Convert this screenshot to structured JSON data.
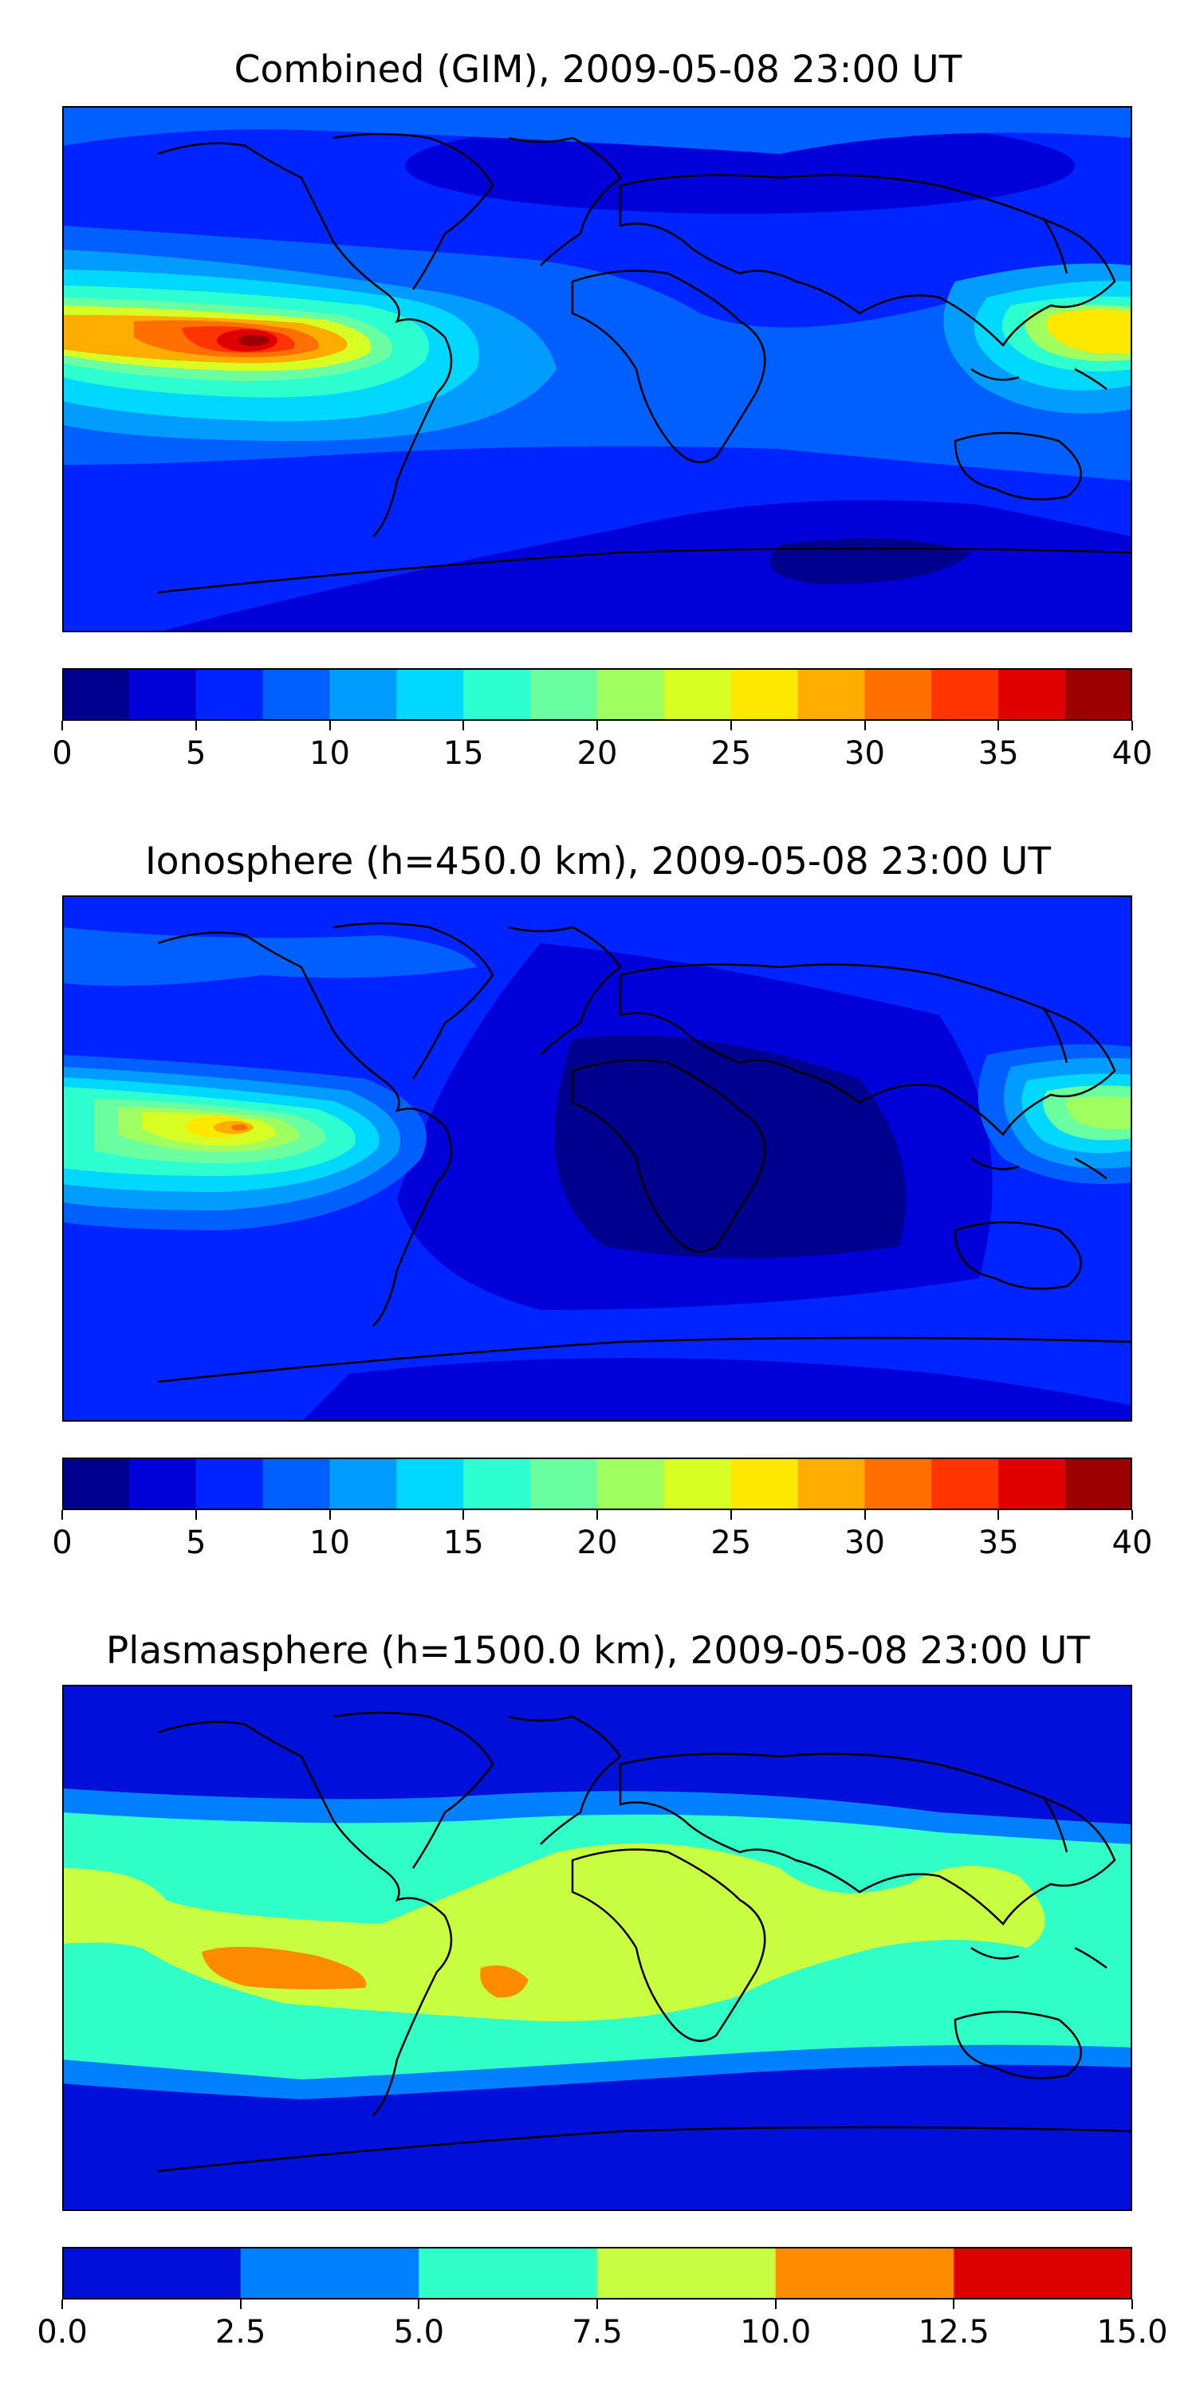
{
  "panels": [
    {
      "title": "Combined (GIM), 2009-05-08 23:00 UT",
      "colorbar_ticks": [
        "0",
        "5",
        "10",
        "15",
        "20",
        "25",
        "30",
        "35",
        "40"
      ],
      "colorbar_colors": [
        "#00008f",
        "#0000d8",
        "#0024ff",
        "#0060ff",
        "#009cff",
        "#00d8ff",
        "#2effd0",
        "#6affa0",
        "#a0ff60",
        "#d8ff24",
        "#ffe800",
        "#ffac00",
        "#ff7000",
        "#ff3400",
        "#e00000",
        "#9c0000"
      ]
    },
    {
      "title": "Ionosphere  (h=450.0 km), 2009-05-08 23:00 UT",
      "colorbar_ticks": [
        "0",
        "5",
        "10",
        "15",
        "20",
        "25",
        "30",
        "35",
        "40"
      ],
      "colorbar_colors": [
        "#00008f",
        "#0000d8",
        "#0024ff",
        "#0060ff",
        "#009cff",
        "#00d8ff",
        "#2effd0",
        "#6affa0",
        "#a0ff60",
        "#d8ff24",
        "#ffe800",
        "#ffac00",
        "#ff7000",
        "#ff3400",
        "#e00000",
        "#9c0000"
      ]
    },
    {
      "title": "Plasmasphere (h=1500.0 km), 2009-05-08 23:00 UT",
      "colorbar_ticks": [
        "0.0",
        "2.5",
        "5.0",
        "7.5",
        "10.0",
        "12.5",
        "15.0"
      ],
      "colorbar_colors": [
        "#0010d8",
        "#0080ff",
        "#30ffc8",
        "#c8ff40",
        "#ff8c00",
        "#dc0000"
      ]
    }
  ],
  "chart_data": [
    {
      "type": "heatmap",
      "title": "Combined (GIM), 2009-05-08 23:00 UT",
      "colorbar_range": [
        0,
        40
      ],
      "colorbar_step": 2.5,
      "features": [
        "peak ~37.5-40 over eastern Pacific west of South America",
        "enhanced ~25-30 over western Pacific near Philippines",
        "minimum ~2.5-5 over Southern Ocean / Antarctica"
      ]
    },
    {
      "type": "heatmap",
      "title": "Ionosphere  (h=450.0 km), 2009-05-08 23:00 UT",
      "colorbar_range": [
        0,
        40
      ],
      "colorbar_step": 2.5,
      "features": [
        "peak ~27.5-30 over eastern Pacific",
        "~20-22.5 over western Pacific",
        "minimum ~0-2.5 over Africa / Atlantic"
      ]
    },
    {
      "type": "heatmap",
      "title": "Plasmasphere (h=1500.0 km), 2009-05-08 23:00 UT",
      "colorbar_range": [
        0.0,
        15.0
      ],
      "colorbar_step": 2.5,
      "features": [
        "equatorial band ~7.5-10",
        "local maxima ~10-12.5 in eastern Pacific and off Brazil",
        "high latitudes ~0-2.5"
      ]
    }
  ]
}
